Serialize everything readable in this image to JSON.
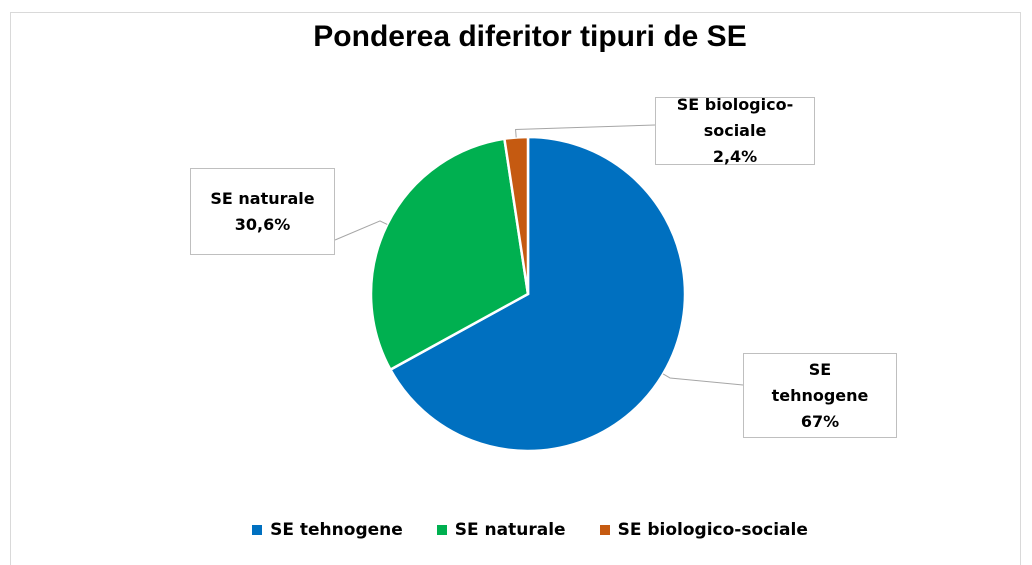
{
  "chart_data": {
    "type": "pie",
    "title": "Ponderea diferitor tipuri de SE",
    "categories": [
      "SE tehnogene",
      "SE naturale",
      "SE biologico-sociale"
    ],
    "values": [
      67,
      30.6,
      2.4
    ],
    "value_labels": [
      "67%",
      "30,6%",
      "2,4%"
    ],
    "colors": [
      "#0070c0",
      "#00b050",
      "#c55a11"
    ],
    "legend": "bottom"
  }
}
